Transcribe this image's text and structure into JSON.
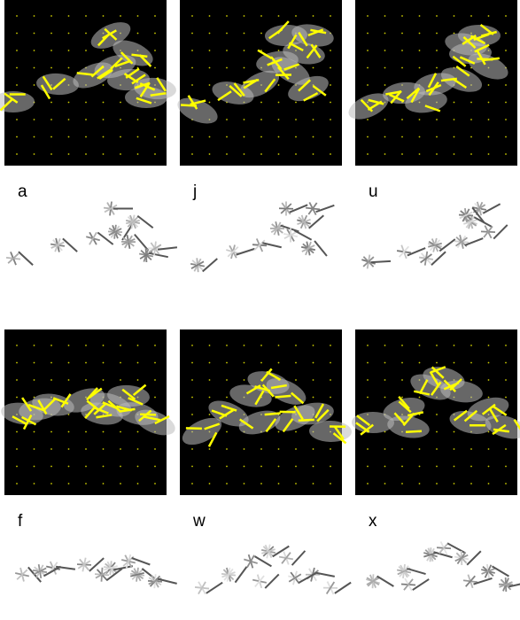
{
  "panels": [
    {
      "label": "a"
    },
    {
      "label": "j"
    },
    {
      "label": "u"
    },
    {
      "label": "f"
    },
    {
      "label": "w"
    },
    {
      "label": "x"
    }
  ]
}
